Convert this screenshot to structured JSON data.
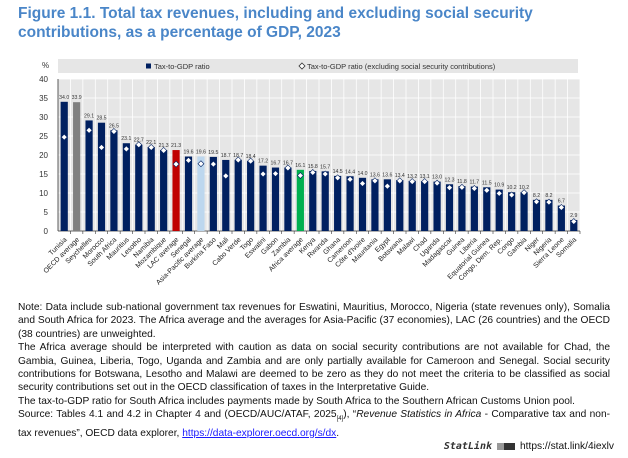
{
  "title": "Figure 1.1. Total tax revenues, including and excluding social security contributions, as a percentage of GDP, 2023",
  "chart_data": {
    "type": "bar",
    "ylabel": "%",
    "ylim": [
      0,
      40
    ],
    "yticks": [
      0,
      5,
      10,
      15,
      20,
      25,
      30,
      35,
      40
    ],
    "grid": true,
    "legend_placement": "top",
    "categories": [
      "Tunisia",
      "OECD average",
      "Seychelles",
      "Morocco",
      "South Africa",
      "Mauritius",
      "Lesotho",
      "Namibia",
      "Mozambique",
      "LAC average",
      "Senegal",
      "Asia-Pacific average",
      "Burkina Faso",
      "Mali",
      "Cabo Verde",
      "Togo",
      "Eswatini",
      "Gabon",
      "Zambia",
      "Africa average",
      "Kenya",
      "Rwanda",
      "Ghana",
      "Cameroon",
      "Côte d'Ivoire",
      "Mauritania",
      "Egypt",
      "Botswana",
      "Malawi",
      "Chad",
      "Uganda",
      "Madagascar",
      "Guinea",
      "Liberia",
      "Equatorial Guinea",
      "Congo, Dem. Rep.",
      "Congo",
      "Gambia",
      "Niger",
      "Nigeria",
      "Sierra Leone",
      "Somalia"
    ],
    "series": [
      {
        "name": "Tax-to-GDP ratio",
        "marker": "bar",
        "values": [
          34.0,
          33.9,
          29.1,
          28.5,
          26.5,
          23.1,
          22.7,
          22.1,
          21.3,
          21.3,
          19.6,
          19.6,
          19.5,
          18.7,
          18.7,
          18.4,
          17.2,
          16.7,
          16.7,
          16.1,
          15.8,
          15.7,
          14.5,
          14.4,
          14.0,
          13.6,
          13.6,
          13.4,
          13.2,
          13.1,
          13.0,
          12.3,
          11.8,
          11.7,
          11.5,
          10.9,
          10.2,
          10.2,
          8.2,
          8.2,
          6.7,
          2.9
        ]
      },
      {
        "name": "Tax-to-GDP ratio (excluding social security contributions)",
        "marker": "diamond",
        "values": [
          24.7,
          null,
          26.5,
          22.0,
          26.2,
          21.6,
          22.7,
          22.0,
          21.2,
          17.6,
          18.6,
          17.7,
          17.6,
          14.5,
          18.7,
          18.4,
          15.0,
          15.1,
          16.6,
          14.6,
          15.4,
          15.0,
          14.0,
          13.6,
          12.5,
          13.2,
          11.8,
          13.2,
          13.0,
          13.0,
          12.6,
          11.4,
          11.5,
          11.2,
          10.7,
          9.9,
          9.5,
          10.1,
          7.7,
          7.6,
          6.2,
          2.5
        ]
      }
    ],
    "data_labels": [
      "34.0",
      "33.9",
      "29.1",
      "28.5",
      "26.5",
      "23.1",
      "22.7",
      "22.1",
      "21.3",
      "21.3",
      "19.6",
      "19.6",
      "19.5",
      "18.7",
      "18.7",
      "18.4",
      "17.2",
      "16.7",
      "16.7",
      "16.1",
      "15.8",
      "15.7",
      "14.5",
      "14.4",
      "14.0",
      "13.6",
      "13.6",
      "13.4",
      "13.2",
      "13.1",
      "13.0",
      "12.3",
      "11.8",
      "11.7",
      "11.5",
      "10.9",
      "10.2",
      "10.2",
      "8.2",
      "8.2",
      "6.7",
      "2.9"
    ],
    "colors": {
      "default": "#002060",
      "OECD average": "#808080",
      "LAC average": "#c00000",
      "Asia-Pacific average": "#bdd7ee",
      "Africa average": "#00b050",
      "plot_background": "#e6e6e6"
    }
  },
  "notes": {
    "note1": "Note: Data include sub-national government tax revenues for Eswatini, Mauritius, Morocco, Nigeria (state revenues only), Somalia and South Africa for 2023. The Africa average and the averages for Asia-Pacific (37 economies), LAC (26 countries) and the OECD (38 countries) are unweighted.",
    "note2": "The Africa average should be interpreted with caution as data on social security contributions are not available for Chad, the Gambia, Guinea, Liberia, Togo, Uganda and Zambia and are only partially available for Cameroon and Senegal. Social security contributions for Botswana, Lesotho and Malawi are deemed to be zero as they do not meet the criteria to be classified as social security contributions set out in the OECD classification of taxes in the Interpretative Guide.",
    "note3": "The tax-to-GDP ratio for South Africa includes payments made by South Africa to the Southern African Customs Union pool.",
    "source_prefix": "Source: Tables 4.1 and 4.2 in Chapter 4 and (OECD/AUC/ATAF, 2025",
    "source_ref": "[4]",
    "source_mid": "), “",
    "source_title": "Revenue Statistics in Africa",
    "source_rest": " - Comparative tax and non-tax revenues”, OECD data explorer, ",
    "source_link": "https://data-explorer.oecd.org/s/dx",
    "source_end": "."
  },
  "statlink": {
    "label": "StatLink",
    "url": "https://stat.link/4iexlv"
  }
}
